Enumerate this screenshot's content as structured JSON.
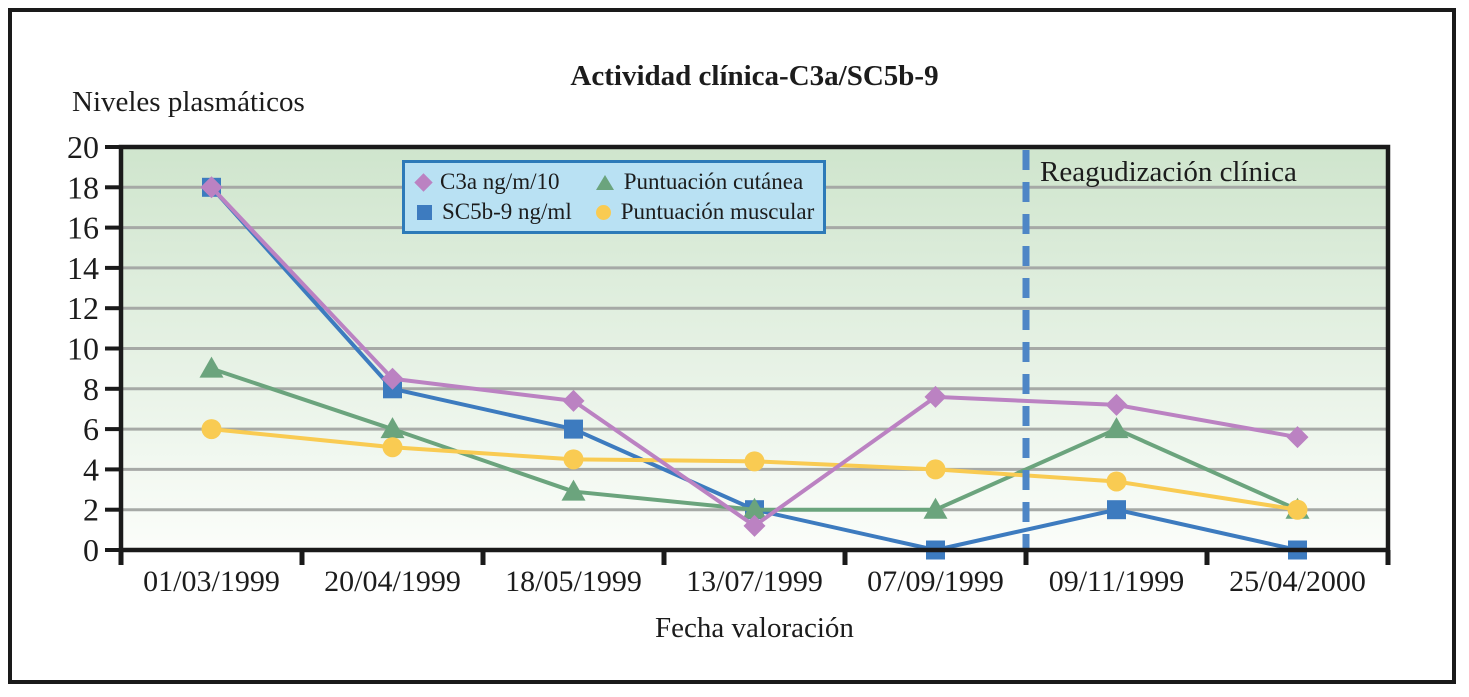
{
  "chart_data": {
    "type": "line",
    "title": "Actividad clínica-C3a/SC5b-9",
    "ylabel": "Niveles plasmáticos",
    "xlabel": "Fecha valoración",
    "categories": [
      "01/03/1999",
      "20/04/1999",
      "18/05/1999",
      "13/07/1999",
      "07/09/1999",
      "09/11/1999",
      "25/04/2000"
    ],
    "ylim": [
      0,
      20
    ],
    "ytick_step": 2,
    "grid": true,
    "legend_position": "top-center-inside",
    "annotation": {
      "label": "Reagudización clínica",
      "boundary_index": 5
    },
    "series": [
      {
        "name": "C3a ng/m/10",
        "marker": "diamond",
        "color": "#bb82c2",
        "z": 4,
        "values": [
          18,
          8.5,
          7.4,
          1.2,
          7.6,
          7.2,
          5.6
        ]
      },
      {
        "name": "SC5b-9 ng/ml",
        "marker": "square",
        "color": "#3d7bbf",
        "z": 1,
        "values": [
          18,
          8,
          6,
          2,
          0,
          2,
          0
        ]
      },
      {
        "name": "Puntuación cutánea",
        "marker": "triangle",
        "color": "#6ba47d",
        "z": 2,
        "values": [
          9,
          6,
          2.9,
          2,
          2,
          6,
          2
        ]
      },
      {
        "name": "Puntuación muscular",
        "marker": "circle",
        "color": "#f9cb52",
        "z": 3,
        "values": [
          6,
          5.1,
          4.5,
          4.4,
          4,
          3.4,
          2
        ]
      }
    ],
    "style": {
      "plot_bg_top": "#cfe5cd",
      "plot_bg_bottom": "#fbfdfa",
      "gridline": "#a6a9a6",
      "axis": "#1a1a1a",
      "legend_bg": "#b9e1f3",
      "legend_border": "#2d7ab8",
      "dash_line": "#4e86c6",
      "text": "#1c1c1c"
    }
  }
}
